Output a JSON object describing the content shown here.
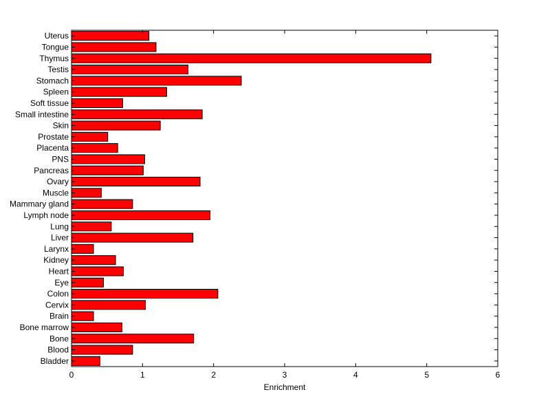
{
  "chart_data": {
    "type": "bar",
    "orientation": "horizontal",
    "title": "",
    "xlabel": "Enrichment",
    "ylabel": "",
    "xlim": [
      0,
      6
    ],
    "xticks": [
      0,
      1,
      2,
      3,
      4,
      5,
      6
    ],
    "grid": false,
    "bar_color": "#ff0000",
    "categories": [
      "Bladder",
      "Blood",
      "Bone",
      "Bone marrow",
      "Brain",
      "Cervix",
      "Colon",
      "Eye",
      "Heart",
      "Kidney",
      "Larynx",
      "Liver",
      "Lung",
      "Lymph node",
      "Mammary gland",
      "Muscle",
      "Ovary",
      "Pancreas",
      "PNS",
      "Placenta",
      "Prostate",
      "Skin",
      "Small intestine",
      "Soft tissue",
      "Spleen",
      "Stomach",
      "Testis",
      "Thymus",
      "Tongue",
      "Uterus"
    ],
    "values": [
      0.4,
      0.86,
      1.72,
      0.71,
      0.31,
      1.04,
      2.06,
      0.45,
      0.73,
      0.62,
      0.31,
      1.71,
      0.56,
      1.95,
      0.86,
      0.42,
      1.81,
      1.01,
      1.03,
      0.65,
      0.51,
      1.25,
      1.84,
      0.72,
      1.34,
      2.39,
      1.64,
      5.06,
      1.19,
      1.09
    ]
  }
}
